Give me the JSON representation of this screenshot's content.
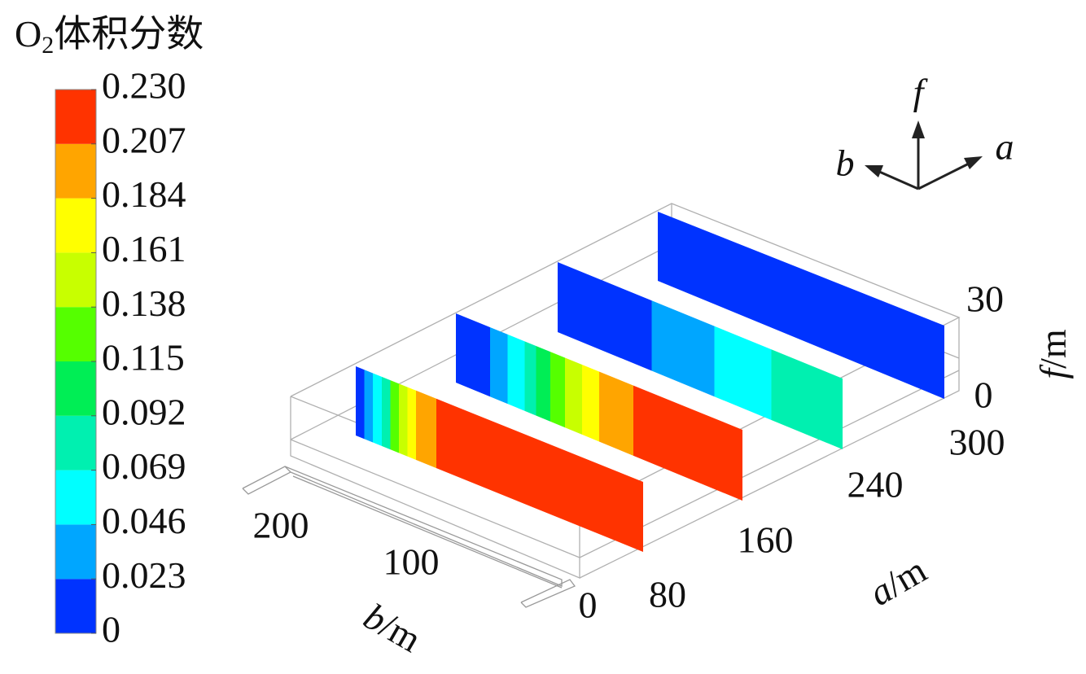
{
  "colorbar": {
    "title": {
      "symbol": "O",
      "subscript": "2",
      "text": "体积分数"
    },
    "ticks": [
      0,
      {
        "value": 0.023,
        "label": "0.023"
      },
      {
        "value": 0.046,
        "label": "0.046"
      },
      {
        "value": 0.069,
        "label": "0.069"
      },
      {
        "value": 0.092,
        "label": "0.092"
      },
      {
        "value": 0.115,
        "label": "0.115"
      },
      {
        "value": 0.138,
        "label": "0.138"
      },
      {
        "value": 0.161,
        "label": "0.161"
      },
      {
        "value": 0.184,
        "label": "0.184"
      },
      {
        "value": 0.207,
        "label": "0.207"
      },
      {
        "value": 0.23,
        "label": "0.230"
      }
    ],
    "colors": [
      "#0033ff",
      "#00a6ff",
      "#00ffff",
      "#00f0b0",
      "#00ee55",
      "#55ff00",
      "#c8ff00",
      "#ffff00",
      "#ffa500",
      "#ff3300"
    ]
  },
  "axes": {
    "b": {
      "var": "b",
      "unit": "/m",
      "ticks": [
        200,
        100
      ]
    },
    "a": {
      "var": "a",
      "unit": "/m",
      "ticks": [
        0,
        80,
        160,
        240,
        300
      ]
    },
    "f": {
      "var": "f",
      "unit": "/m",
      "ticks": [
        0,
        30
      ]
    }
  },
  "compass": {
    "f": "f",
    "b": "b",
    "a": "a"
  }
}
